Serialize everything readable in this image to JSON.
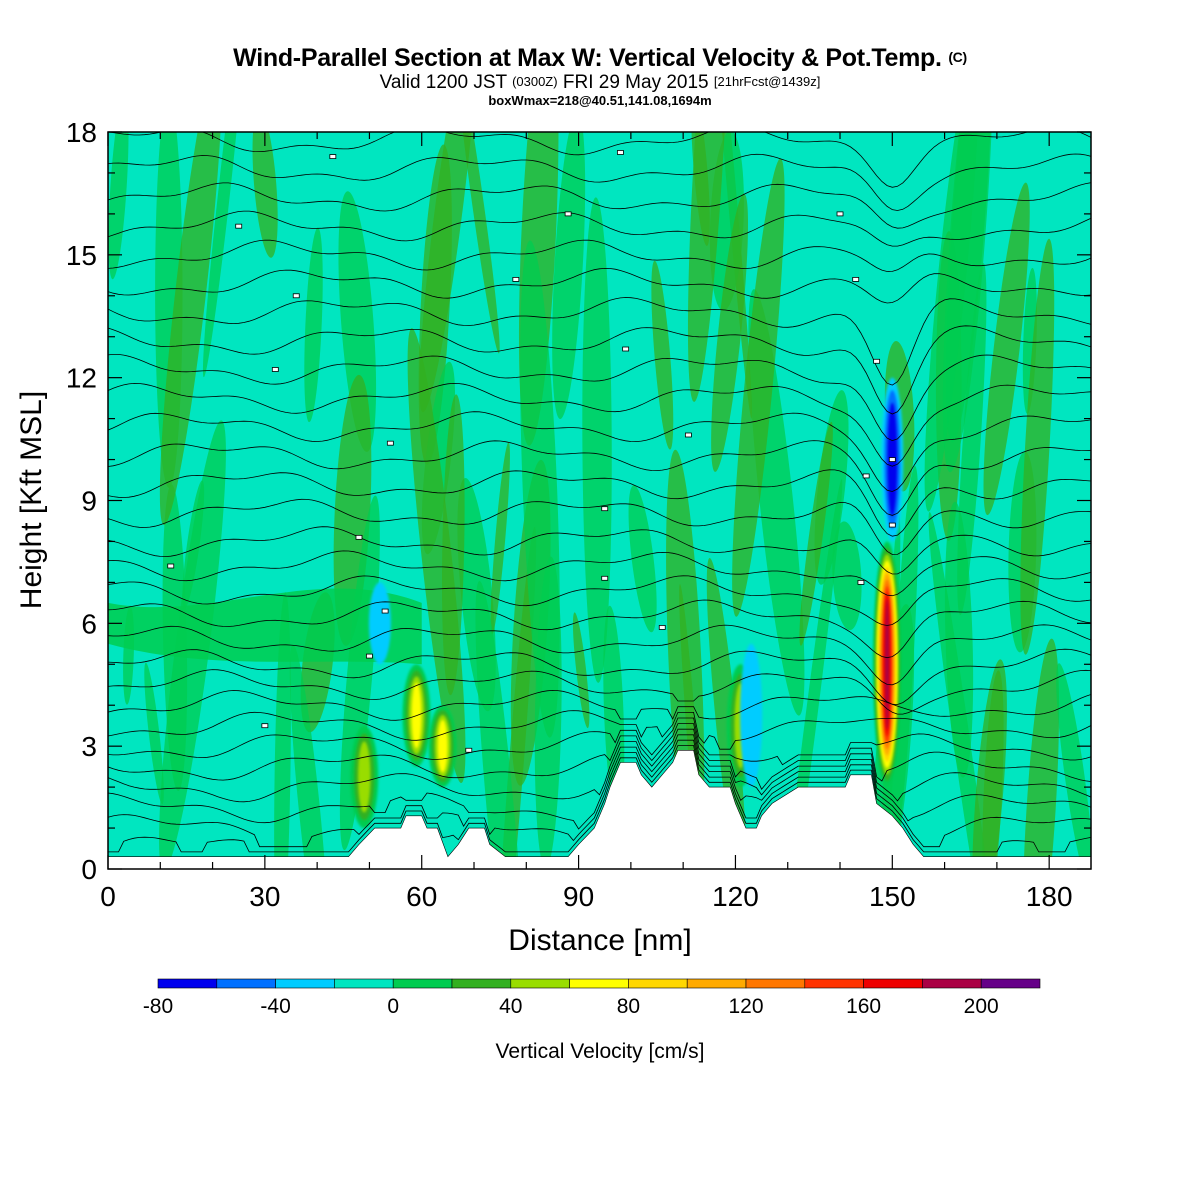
{
  "chart_data": {
    "type": "heatmap",
    "title": "Wind-Parallel Section at Max W: Vertical Velocity & Pot.Temp.",
    "title_mark": "(C)",
    "subtitle_main": "Valid 1200 JST",
    "subtitle_utc": "(0300Z)",
    "subtitle_date": "FRI 29 May 2015",
    "subtitle_fcst": "[21hrFcst@1439z]",
    "info_line": "boxWmax=218@40.51,141.08,1694m",
    "xlabel": "Distance [nm]",
    "ylabel": "Height [Kft MSL]",
    "xlim": [
      0,
      188
    ],
    "ylim": [
      0,
      18
    ],
    "xticks": [
      "0",
      "30",
      "60",
      "90",
      "120",
      "150",
      "180"
    ],
    "yticks": [
      "0",
      "3",
      "6",
      "9",
      "12",
      "15",
      "18"
    ],
    "colorbar_label": "Vertical Velocity [cm/s]",
    "colorbar_ticks": [
      "-80",
      "-40",
      "0",
      "40",
      "80",
      "120",
      "160",
      "200"
    ],
    "colorbar_levels": [
      -80,
      -60,
      -40,
      -20,
      0,
      20,
      40,
      60,
      80,
      100,
      120,
      140,
      160,
      180,
      200,
      220
    ],
    "colorbar_colors": [
      "#0000ee",
      "#0070ff",
      "#00ccff",
      "#00e6c0",
      "#00cc50",
      "#33b020",
      "#99dd00",
      "#ffff00",
      "#ffd700",
      "#ffaa00",
      "#ff7700",
      "#ff3300",
      "#ee0000",
      "#aa0044",
      "#660088"
    ],
    "background_color": "#00e6c0",
    "max_updraft": {
      "value_cm_s": 218,
      "lat": 40.51,
      "lon": 141.08,
      "height_m": 1694,
      "distance_nm": 149
    },
    "updraft_cores": [
      {
        "x_nm": 149,
        "z_bottom_kft": 2.0,
        "z_top_kft": 8.0,
        "peak_cm_s": 200
      },
      {
        "x_nm": 59,
        "z_bottom_kft": 2.5,
        "z_top_kft": 5.0,
        "peak_cm_s": 80
      },
      {
        "x_nm": 64,
        "z_bottom_kft": 2.0,
        "z_top_kft": 4.0,
        "peak_cm_s": 70
      },
      {
        "x_nm": 121,
        "z_bottom_kft": 2.0,
        "z_top_kft": 5.0,
        "peak_cm_s": 60
      },
      {
        "x_nm": 49,
        "z_bottom_kft": 1.0,
        "z_top_kft": 3.5,
        "peak_cm_s": 50
      }
    ],
    "downdraft_cores": [
      {
        "x_nm": 150,
        "z_bottom_kft": 8.0,
        "z_top_kft": 12.0,
        "peak_cm_s": -80
      },
      {
        "x_nm": 52,
        "z_bottom_kft": 5.0,
        "z_top_kft": 7.0,
        "peak_cm_s": -40
      },
      {
        "x_nm": 123,
        "z_bottom_kft": 2.0,
        "z_top_kft": 5.5,
        "peak_cm_s": -40
      }
    ],
    "terrain_kft": [
      [
        0,
        0.3
      ],
      [
        46,
        0.3
      ],
      [
        48,
        0.6
      ],
      [
        51,
        1.0
      ],
      [
        56,
        1.0
      ],
      [
        57,
        1.3
      ],
      [
        60,
        1.3
      ],
      [
        61,
        1.0
      ],
      [
        63,
        1.0
      ],
      [
        65,
        0.3
      ],
      [
        67,
        0.6
      ],
      [
        69,
        1.0
      ],
      [
        72,
        1.0
      ],
      [
        73,
        0.6
      ],
      [
        76,
        0.3
      ],
      [
        88,
        0.3
      ],
      [
        90,
        0.6
      ],
      [
        93,
        1.0
      ],
      [
        95,
        1.6
      ],
      [
        96,
        2.0
      ],
      [
        97,
        2.3
      ],
      [
        98,
        2.6
      ],
      [
        101,
        2.6
      ],
      [
        102,
        2.3
      ],
      [
        104,
        2.0
      ],
      [
        106,
        2.3
      ],
      [
        108,
        2.6
      ],
      [
        109,
        2.9
      ],
      [
        112,
        2.9
      ],
      [
        113,
        2.3
      ],
      [
        115,
        2.0
      ],
      [
        119,
        2.0
      ],
      [
        120,
        1.6
      ],
      [
        122,
        1.0
      ],
      [
        124,
        1.0
      ],
      [
        125,
        1.3
      ],
      [
        127,
        1.6
      ],
      [
        132,
        2.0
      ],
      [
        141,
        2.0
      ],
      [
        142,
        2.3
      ],
      [
        146,
        2.3
      ],
      [
        147,
        1.6
      ],
      [
        150,
        1.3
      ],
      [
        152,
        1.0
      ],
      [
        154,
        0.6
      ],
      [
        156,
        0.3
      ],
      [
        188,
        0.3
      ]
    ],
    "theta_isentropes_kft": [
      0.5,
      1.0,
      1.5,
      2.0,
      2.5,
      3.0,
      3.5,
      4.0,
      4.5,
      5.0,
      5.6,
      6.2,
      6.8,
      7.4,
      8.0,
      8.7,
      9.4,
      10.1,
      10.8,
      11.5,
      12.2,
      12.9,
      13.6,
      14.3,
      15.0,
      15.7,
      16.4,
      17.1,
      17.8
    ],
    "contour_value_markers": [
      [
        43,
        17.4
      ],
      [
        98,
        17.5
      ],
      [
        25,
        15.7
      ],
      [
        88,
        16.0
      ],
      [
        140,
        16.0
      ],
      [
        36,
        14.0
      ],
      [
        78,
        14.4
      ],
      [
        143,
        14.4
      ],
      [
        32,
        12.2
      ],
      [
        99,
        12.7
      ],
      [
        147,
        12.4
      ],
      [
        54,
        10.4
      ],
      [
        111,
        10.6
      ],
      [
        150,
        10.0
      ],
      [
        48,
        8.1
      ],
      [
        95,
        8.8
      ],
      [
        145,
        9.6
      ],
      [
        12,
        7.4
      ],
      [
        53,
        6.3
      ],
      [
        95,
        7.1
      ],
      [
        144,
        7.0
      ],
      [
        106,
        5.9
      ],
      [
        50,
        5.2
      ],
      [
        150,
        8.4
      ],
      [
        30,
        3.5
      ],
      [
        69,
        2.9
      ]
    ]
  }
}
